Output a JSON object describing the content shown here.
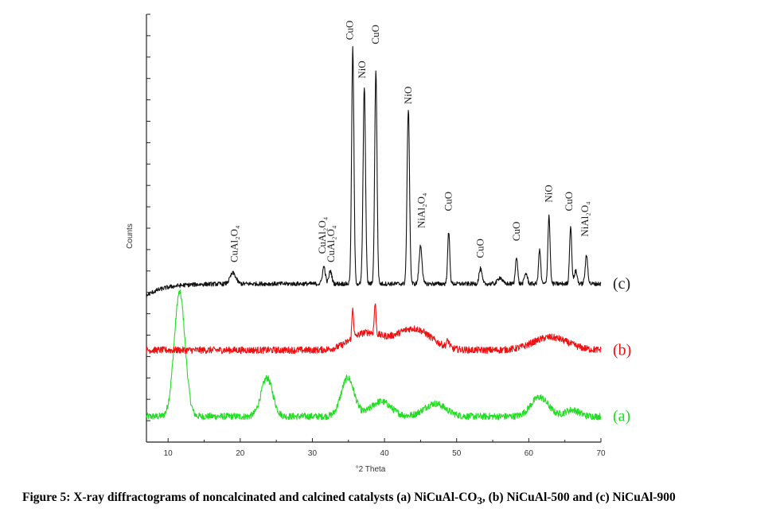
{
  "chart_data": {
    "type": "line",
    "xlabel": "°2 Theta",
    "ylabel": "Counts",
    "xlim": [
      7,
      70
    ],
    "ylim": [
      0,
      100
    ],
    "x_ticks": [
      10,
      20,
      30,
      40,
      50,
      60,
      70
    ],
    "grid": false,
    "series": [
      {
        "name": "(a)",
        "color": "#22dd22",
        "baseline": 6,
        "noise": 0.8,
        "peaks": [
          {
            "x": 11.6,
            "h": 29,
            "w": 0.75
          },
          {
            "x": 23.7,
            "h": 9,
            "w": 0.8
          },
          {
            "x": 34.9,
            "h": 9,
            "w": 0.9
          },
          {
            "x": 39.5,
            "h": 3.5,
            "w": 1.4
          },
          {
            "x": 47.0,
            "h": 3,
            "w": 1.5
          },
          {
            "x": 61.5,
            "h": 4.5,
            "w": 1.2
          },
          {
            "x": 66.0,
            "h": 1.5,
            "w": 1.0
          }
        ]
      },
      {
        "name": "(b)",
        "color": "#ee1111",
        "baseline": 21.5,
        "noise": 0.8,
        "peaks": [
          {
            "x": 35.6,
            "h": 7,
            "w": 0.12
          },
          {
            "x": 38.7,
            "h": 7,
            "w": 0.12
          },
          {
            "x": 37.5,
            "h": 4,
            "w": 2.2
          },
          {
            "x": 44.0,
            "h": 5,
            "w": 2.4
          },
          {
            "x": 63.0,
            "h": 3,
            "w": 2.4
          },
          {
            "x": 48.8,
            "h": 1.5,
            "w": 0.2
          }
        ]
      },
      {
        "name": "(c)",
        "color": "#111111",
        "baseline": 37,
        "noise": 0.5,
        "peaks": [
          {
            "x": 19.0,
            "h": 2.5,
            "w": 0.4
          },
          {
            "x": 31.6,
            "h": 4,
            "w": 0.2
          },
          {
            "x": 32.5,
            "h": 3,
            "w": 0.2
          },
          {
            "x": 35.6,
            "h": 55,
            "w": 0.16
          },
          {
            "x": 37.2,
            "h": 46,
            "w": 0.17
          },
          {
            "x": 38.8,
            "h": 50,
            "w": 0.16
          },
          {
            "x": 43.3,
            "h": 41,
            "w": 0.17
          },
          {
            "x": 45.0,
            "h": 9,
            "w": 0.2
          },
          {
            "x": 48.9,
            "h": 12,
            "w": 0.15
          },
          {
            "x": 53.3,
            "h": 3.5,
            "w": 0.2
          },
          {
            "x": 56.0,
            "h": 1.5,
            "w": 0.3
          },
          {
            "x": 58.3,
            "h": 6.5,
            "w": 0.15
          },
          {
            "x": 59.6,
            "h": 2.5,
            "w": 0.2
          },
          {
            "x": 61.5,
            "h": 8,
            "w": 0.15
          },
          {
            "x": 62.8,
            "h": 16,
            "w": 0.15
          },
          {
            "x": 65.8,
            "h": 13.5,
            "w": 0.15
          },
          {
            "x": 66.5,
            "h": 3,
            "w": 0.2
          },
          {
            "x": 68.0,
            "h": 6.5,
            "w": 0.18
          }
        ]
      }
    ],
    "peak_labels": [
      {
        "text": "CuAl₂O₄",
        "x": 19.2,
        "y": 42
      },
      {
        "text": "CuAl₂O₄",
        "x": 31.4,
        "y": 44
      },
      {
        "text": "CuAl₂O₄",
        "x": 32.6,
        "y": 42
      },
      {
        "text": "CuO",
        "x": 35.2,
        "y": 94
      },
      {
        "text": "NiO",
        "x": 36.9,
        "y": 85
      },
      {
        "text": "CuO",
        "x": 38.8,
        "y": 93
      },
      {
        "text": "NiO",
        "x": 43.3,
        "y": 79
      },
      {
        "text": "NiAl₂O₄",
        "x": 45.1,
        "y": 50
      },
      {
        "text": "CuO",
        "x": 48.9,
        "y": 54
      },
      {
        "text": "CuO",
        "x": 53.3,
        "y": 43
      },
      {
        "text": "CuO",
        "x": 58.3,
        "y": 47
      },
      {
        "text": "NiO",
        "x": 62.8,
        "y": 56
      },
      {
        "text": "CuO",
        "x": 65.6,
        "y": 54
      },
      {
        "text": "NiAl₂O₄",
        "x": 67.8,
        "y": 48
      }
    ]
  },
  "caption": {
    "figure_number": "Figure 5: ",
    "text_part1": "X-ray diffractograms of noncalcinated and calcined catalysts (a) NiCuAl-CO",
    "sub_3": "3",
    "text_part2": ", (b) NiCuAl-500 and (c) NiCuAl-900"
  }
}
